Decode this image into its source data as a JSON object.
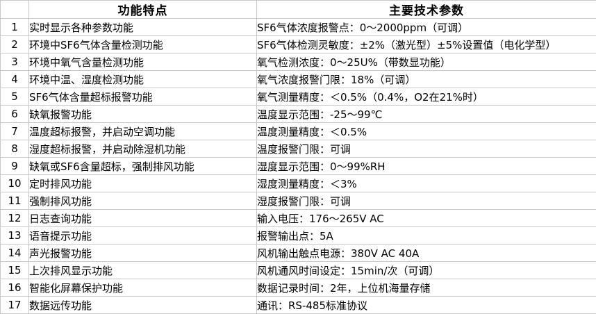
{
  "table": {
    "headers": {
      "index": "",
      "features": "功能特点",
      "params": "主要技术参数"
    },
    "rows": [
      {
        "no": "1",
        "feature": "实时显示各种参数功能",
        "param": "SF6气体浓度报警点：0～2000ppm（可调）"
      },
      {
        "no": "2",
        "feature": "环境中SF6气体含量检测功能",
        "param": "SF6气体检测灵敏度：±2%（激光型）±5%设置值（电化学型）"
      },
      {
        "no": "3",
        "feature": "环境中氧气含量检测功能",
        "param": "氧气检测浓度：0～25U%（带数显功能）"
      },
      {
        "no": "4",
        "feature": "环境中温、湿度检测功能",
        "param": "氧气浓度报警门限：18%（可调）"
      },
      {
        "no": "5",
        "feature": "SF6气体含量超标报警功能",
        "param": "氧气测量精度：＜0.5%（0.4%，O2在21%时）"
      },
      {
        "no": "6",
        "feature": "缺氧报警功能",
        "param": "温度显示范围：-25～99℃"
      },
      {
        "no": "7",
        "feature": "温度超标报警，并启动空调功能",
        "param": "温度测量精度：＜0.5%"
      },
      {
        "no": "8",
        "feature": "湿度超标报警，并启动除湿机功能",
        "param": "温度报警门限：可调"
      },
      {
        "no": "9",
        "feature": "缺氧或SF6含量超标，强制排风功能",
        "param": "湿度显示范围：0～99%RH"
      },
      {
        "no": "10",
        "feature": "定时排风功能",
        "param": "湿度测量精度：＜3%"
      },
      {
        "no": "11",
        "feature": "强制排风功能",
        "param": "湿度报警门限：可调"
      },
      {
        "no": "12",
        "feature": "日志查询功能",
        "param": "输入电压：176～265V AC"
      },
      {
        "no": "13",
        "feature": "语音提示功能",
        "param": "报警输出点：5A"
      },
      {
        "no": "14",
        "feature": "声光报警功能",
        "param": "风机输出触点电源：380V AC 40A"
      },
      {
        "no": "15",
        "feature": "上次排风显示功能",
        "param": "风机通风时间设定：15min/次（可调）"
      },
      {
        "no": "16",
        "feature": "智能化屏幕保护功能",
        "param": "数据记录时间：2年，上位机海量存储"
      },
      {
        "no": "17",
        "feature": "数据远传功能",
        "param": "通讯：RS-485标准协议"
      }
    ]
  },
  "colors": {
    "border": "#c8c8c8",
    "background": "#ffffff",
    "text": "#000000"
  }
}
